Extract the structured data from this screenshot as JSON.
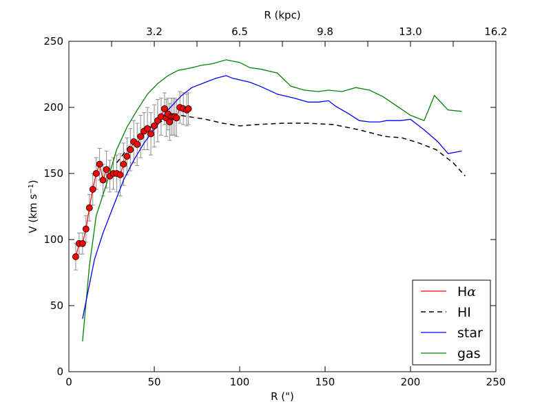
{
  "chart_data": {
    "type": "line",
    "xlabel": "R (\")",
    "ylabel": "V (km s",
    "ylabel_sup": "−1",
    "ylabel_end": ")",
    "top_xlabel": "R (kpc)",
    "xlim": [
      0,
      250
    ],
    "ylim": [
      0,
      250
    ],
    "x_ticks": [
      0,
      50,
      100,
      150,
      200,
      250
    ],
    "y_ticks": [
      0,
      50,
      100,
      150,
      200,
      250
    ],
    "x_tick_labels": [
      "0",
      "50",
      "100",
      "150",
      "200",
      "250"
    ],
    "y_tick_labels": [
      "0",
      "50",
      "100",
      "150",
      "200",
      "250"
    ],
    "top_ticks": [
      25,
      50,
      75,
      100,
      125,
      150,
      175,
      200,
      225
    ],
    "top_labeled_positions": [
      50,
      100,
      150,
      200,
      250
    ],
    "top_tick_labels": [
      "3.2",
      "6.5",
      "9.8",
      "13.0",
      "16.2"
    ],
    "legend_position": "lower-right",
    "series": [
      {
        "name": "Hα",
        "legend_main": "H",
        "legend_greek": "α",
        "color": "#ff0000",
        "style": "solid-with-markers",
        "x": [
          4,
          6,
          8,
          10,
          12,
          14,
          16,
          18,
          20,
          22,
          24,
          26,
          28,
          30,
          32,
          34,
          36,
          38,
          40,
          42,
          44,
          46,
          48,
          50,
          52,
          54,
          56,
          57,
          58,
          59,
          60,
          61,
          62,
          63,
          65,
          67,
          69,
          70
        ],
        "y": [
          87,
          97,
          97,
          108,
          124,
          138,
          150,
          157,
          145,
          153,
          148,
          150,
          150,
          149,
          157,
          163,
          168,
          174,
          172,
          178,
          182,
          184,
          180,
          186,
          190,
          193,
          199,
          192,
          195,
          189,
          193,
          193,
          193,
          192,
          200,
          199,
          198,
          199
        ],
        "err": [
          10,
          8,
          8,
          10,
          10,
          12,
          12,
          12,
          12,
          14,
          12,
          12,
          14,
          16,
          16,
          14,
          16,
          16,
          16,
          16,
          14,
          16,
          16,
          16,
          16,
          14,
          12,
          14,
          12,
          14,
          14,
          14,
          14,
          14,
          12,
          12,
          12,
          12
        ]
      },
      {
        "name": "HI",
        "color": "#000000",
        "style": "dashed",
        "x": [
          28,
          35,
          45,
          55,
          65,
          70,
          80,
          90,
          100,
          110,
          125,
          140,
          155,
          170,
          185,
          195,
          205,
          215,
          225,
          232
        ],
        "y": [
          158,
          170,
          183,
          190,
          194,
          193,
          191,
          188,
          186,
          187,
          188,
          188,
          187,
          183,
          178,
          177,
          173,
          168,
          158,
          148
        ]
      },
      {
        "name": "star",
        "color": "#0000ff",
        "style": "solid",
        "x": [
          8,
          15,
          20,
          26,
          32,
          38,
          44,
          52,
          58,
          66,
          72,
          80,
          86,
          92,
          96,
          106,
          112,
          122,
          132,
          140,
          146,
          152,
          156,
          164,
          170,
          176,
          182,
          186,
          194,
          200,
          208,
          216,
          222,
          230
        ],
        "y": [
          40,
          85,
          105,
          125,
          145,
          160,
          173,
          187,
          198,
          209,
          215,
          219,
          222,
          224,
          222,
          219,
          216,
          210,
          207,
          204,
          204,
          205,
          201,
          195,
          190,
          189,
          189,
          190,
          190,
          191,
          183,
          174,
          165,
          167
        ]
      },
      {
        "name": "gas",
        "color": "#008000",
        "style": "solid",
        "x": [
          8,
          12,
          16,
          22,
          28,
          34,
          40,
          46,
          52,
          58,
          64,
          72,
          78,
          84,
          92,
          100,
          106,
          112,
          122,
          130,
          138,
          146,
          152,
          160,
          168,
          176,
          184,
          192,
          200,
          208,
          214,
          222,
          230
        ],
        "y": [
          23,
          80,
          118,
          142,
          168,
          185,
          198,
          210,
          218,
          224,
          228,
          230,
          232,
          233,
          236,
          234,
          230,
          229,
          226,
          216,
          213,
          212,
          213,
          212,
          215,
          213,
          208,
          201,
          194,
          190,
          209,
          198,
          197
        ]
      }
    ]
  }
}
